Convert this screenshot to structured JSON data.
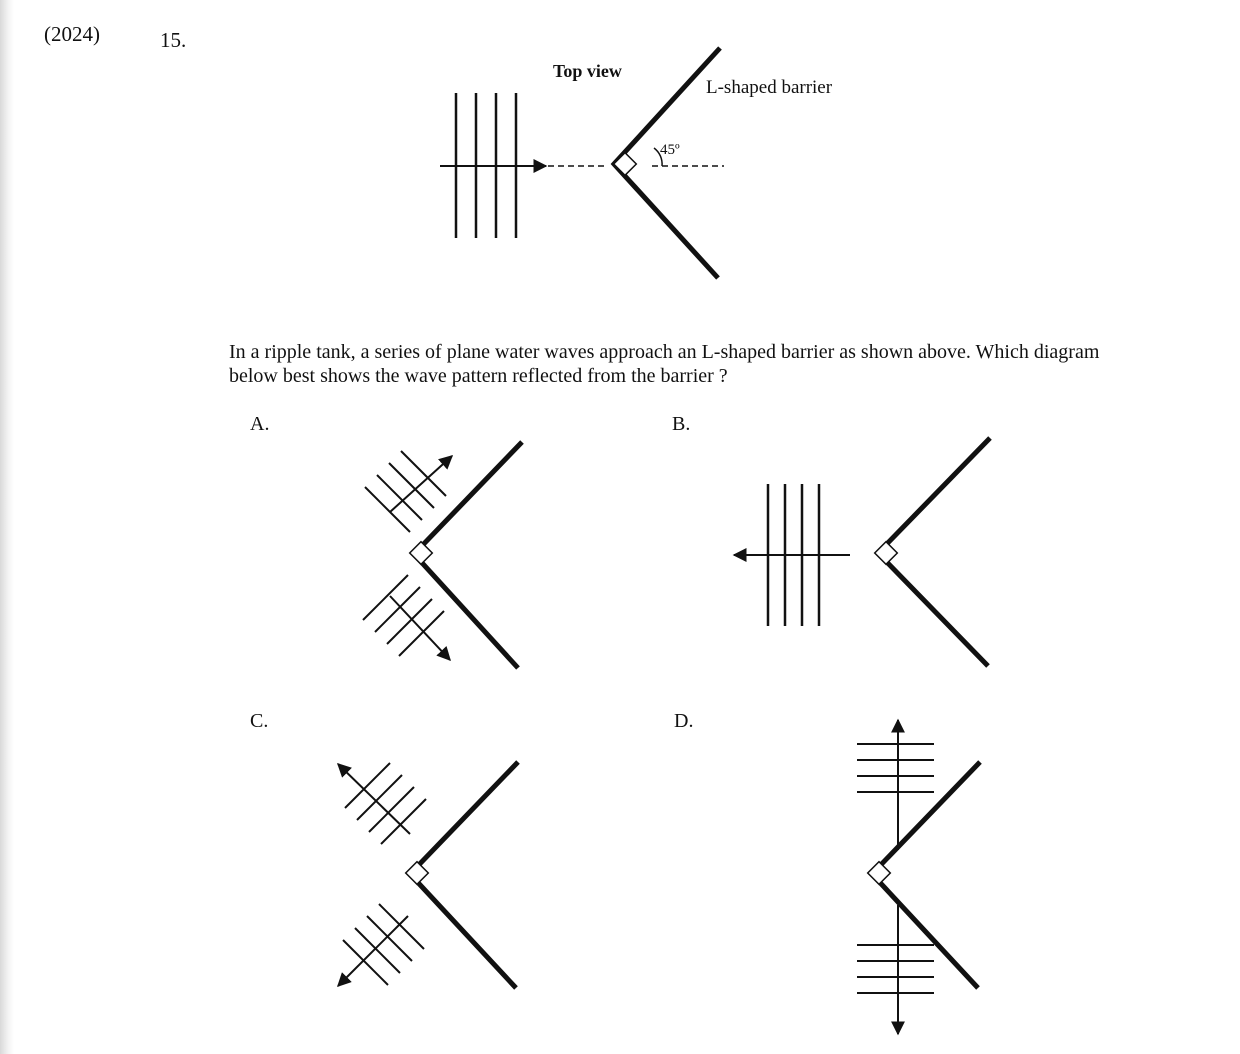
{
  "header": {
    "year": "(2024)",
    "question_number": "15."
  },
  "figure": {
    "top_view_label": "Top view",
    "barrier_label": "L-shaped barrier",
    "angle_label": "45º"
  },
  "question_text": "In a ripple tank, a series of plane water waves approach an L-shaped barrier as shown above.  Which diagram below best shows the wave pattern reflected from the barrier ?",
  "options": [
    {
      "letter": "A."
    },
    {
      "letter": "B."
    },
    {
      "letter": "C."
    },
    {
      "letter": "D."
    }
  ]
}
